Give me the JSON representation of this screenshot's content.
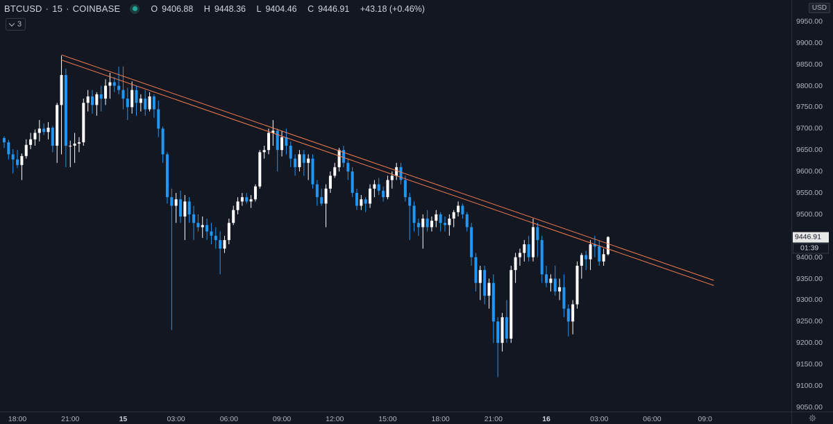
{
  "legend": {
    "symbol": "BTCUSD",
    "interval": "15",
    "exchange": "COINBASE",
    "separator": "·",
    "open_label": "O",
    "open": "9406.88",
    "high_label": "H",
    "high": "9448.36",
    "low_label": "L",
    "low": "9404.46",
    "close_label": "C",
    "close": "9446.91",
    "change": "+43.18 (+0.46%)",
    "status_icon": "market-open-dot-icon"
  },
  "indicators": {
    "count": "3",
    "icon": "chevron-down-icon"
  },
  "price_axis": {
    "currency": "USD",
    "current_price": "9446.91",
    "countdown": "01:39"
  },
  "settings_icon": "gear-icon",
  "colors": {
    "background": "#131722",
    "up": "#ffffff",
    "down": "#2196f3",
    "trendline": "#f57c4d",
    "axis_text": "#b2b5be"
  },
  "chart_data": {
    "type": "candlestick",
    "symbol": "BTCUSD",
    "interval_minutes": 15,
    "ylim": [
      9040,
      10000
    ],
    "y_ticks": [
      "9050.00",
      "9100.00",
      "9150.00",
      "9200.00",
      "9250.00",
      "9300.00",
      "9350.00",
      "9400.00",
      "9450.00",
      "9500.00",
      "9550.00",
      "9600.00",
      "9650.00",
      "9700.00",
      "9750.00",
      "9800.00",
      "9850.00",
      "9900.00",
      "9950.00"
    ],
    "x_ticks": [
      {
        "label": "18:00",
        "bar": 3,
        "bold": false
      },
      {
        "label": "21:00",
        "bar": 15,
        "bold": false
      },
      {
        "label": "15",
        "bar": 27,
        "bold": true
      },
      {
        "label": "03:00",
        "bar": 39,
        "bold": false
      },
      {
        "label": "06:00",
        "bar": 51,
        "bold": false
      },
      {
        "label": "09:00",
        "bar": 63,
        "bold": false
      },
      {
        "label": "12:00",
        "bar": 75,
        "bold": false
      },
      {
        "label": "15:00",
        "bar": 87,
        "bold": false
      },
      {
        "label": "18:00",
        "bar": 99,
        "bold": false
      },
      {
        "label": "21:00",
        "bar": 111,
        "bold": false
      },
      {
        "label": "16",
        "bar": 123,
        "bold": true
      },
      {
        "label": "03:00",
        "bar": 135,
        "bold": false
      },
      {
        "label": "06:00",
        "bar": 147,
        "bold": false
      },
      {
        "label": "09:0",
        "bar": 159,
        "bold": false
      }
    ],
    "trendlines": [
      {
        "name": "upper",
        "from": {
          "bar": 13,
          "price": 9872
        },
        "to": {
          "bar": 161,
          "price": 9346
        }
      },
      {
        "name": "lower",
        "from": {
          "bar": 13,
          "price": 9860
        },
        "to": {
          "bar": 161,
          "price": 9334
        }
      }
    ],
    "candles": [
      [
        9678,
        9682,
        9655,
        9668
      ],
      [
        9668,
        9674,
        9628,
        9640
      ],
      [
        9640,
        9652,
        9595,
        9628
      ],
      [
        9628,
        9650,
        9608,
        9615
      ],
      [
        9615,
        9642,
        9580,
        9636
      ],
      [
        9636,
        9675,
        9630,
        9662
      ],
      [
        9662,
        9690,
        9652,
        9675
      ],
      [
        9675,
        9698,
        9660,
        9690
      ],
      [
        9690,
        9720,
        9670,
        9700
      ],
      [
        9700,
        9712,
        9685,
        9692
      ],
      [
        9692,
        9715,
        9675,
        9702
      ],
      [
        9702,
        9706,
        9645,
        9660
      ],
      [
        9660,
        9760,
        9620,
        9755
      ],
      [
        9755,
        9870,
        9640,
        9825
      ],
      [
        9825,
        9840,
        9610,
        9660
      ],
      [
        9660,
        9672,
        9610,
        9660
      ],
      [
        9660,
        9690,
        9620,
        9665
      ],
      [
        9665,
        9680,
        9645,
        9668
      ],
      [
        9668,
        9770,
        9660,
        9760
      ],
      [
        9760,
        9790,
        9740,
        9775
      ],
      [
        9775,
        9790,
        9735,
        9755
      ],
      [
        9755,
        9785,
        9730,
        9780
      ],
      [
        9780,
        9800,
        9740,
        9770
      ],
      [
        9770,
        9815,
        9755,
        9800
      ],
      [
        9800,
        9830,
        9770,
        9808
      ],
      [
        9808,
        9820,
        9785,
        9800
      ],
      [
        9800,
        9845,
        9780,
        9790
      ],
      [
        9790,
        9845,
        9745,
        9770
      ],
      [
        9770,
        9795,
        9720,
        9750
      ],
      [
        9750,
        9810,
        9735,
        9790
      ],
      [
        9790,
        9800,
        9730,
        9760
      ],
      [
        9760,
        9780,
        9740,
        9770
      ],
      [
        9770,
        9790,
        9730,
        9745
      ],
      [
        9745,
        9785,
        9740,
        9775
      ],
      [
        9775,
        9780,
        9725,
        9745
      ],
      [
        9745,
        9765,
        9680,
        9700
      ],
      [
        9700,
        9705,
        9620,
        9640
      ],
      [
        9640,
        9645,
        9525,
        9540
      ],
      [
        9540,
        9560,
        9230,
        9520
      ],
      [
        9520,
        9550,
        9480,
        9535
      ],
      [
        9535,
        9555,
        9480,
        9495
      ],
      [
        9495,
        9545,
        9440,
        9530
      ],
      [
        9530,
        9540,
        9480,
        9500
      ],
      [
        9500,
        9520,
        9440,
        9480
      ],
      [
        9480,
        9500,
        9460,
        9470
      ],
      [
        9470,
        9495,
        9445,
        9475
      ],
      [
        9475,
        9490,
        9440,
        9460
      ],
      [
        9460,
        9480,
        9430,
        9450
      ],
      [
        9450,
        9470,
        9420,
        9440
      ],
      [
        9440,
        9460,
        9360,
        9420
      ],
      [
        9420,
        9450,
        9410,
        9440
      ],
      [
        9440,
        9490,
        9430,
        9480
      ],
      [
        9480,
        9520,
        9475,
        9510
      ],
      [
        9510,
        9540,
        9500,
        9530
      ],
      [
        9530,
        9550,
        9520,
        9540
      ],
      [
        9540,
        9550,
        9525,
        9530
      ],
      [
        9530,
        9545,
        9515,
        9535
      ],
      [
        9535,
        9570,
        9530,
        9565
      ],
      [
        9565,
        9650,
        9560,
        9645
      ],
      [
        9645,
        9660,
        9630,
        9650
      ],
      [
        9650,
        9700,
        9640,
        9690
      ],
      [
        9690,
        9720,
        9660,
        9695
      ],
      [
        9695,
        9700,
        9600,
        9650
      ],
      [
        9650,
        9695,
        9635,
        9680
      ],
      [
        9680,
        9700,
        9640,
        9660
      ],
      [
        9660,
        9670,
        9610,
        9630
      ],
      [
        9630,
        9640,
        9590,
        9610
      ],
      [
        9610,
        9650,
        9600,
        9640
      ],
      [
        9640,
        9650,
        9590,
        9620
      ],
      [
        9620,
        9640,
        9580,
        9630
      ],
      [
        9630,
        9640,
        9560,
        9570
      ],
      [
        9570,
        9580,
        9520,
        9540
      ],
      [
        9540,
        9560,
        9520,
        9525
      ],
      [
        9525,
        9570,
        9470,
        9560
      ],
      [
        9560,
        9600,
        9550,
        9590
      ],
      [
        9590,
        9620,
        9585,
        9610
      ],
      [
        9610,
        9655,
        9600,
        9650
      ],
      [
        9650,
        9660,
        9610,
        9620
      ],
      [
        9620,
        9630,
        9580,
        9600
      ],
      [
        9600,
        9610,
        9540,
        9550
      ],
      [
        9550,
        9560,
        9510,
        9520
      ],
      [
        9520,
        9545,
        9510,
        9535
      ],
      [
        9535,
        9540,
        9505,
        9525
      ],
      [
        9525,
        9570,
        9515,
        9560
      ],
      [
        9560,
        9580,
        9540,
        9570
      ],
      [
        9570,
        9585,
        9545,
        9555
      ],
      [
        9555,
        9565,
        9530,
        9540
      ],
      [
        9540,
        9590,
        9535,
        9580
      ],
      [
        9580,
        9600,
        9560,
        9590
      ],
      [
        9590,
        9620,
        9580,
        9610
      ],
      [
        9610,
        9620,
        9570,
        9580
      ],
      [
        9580,
        9590,
        9530,
        9540
      ],
      [
        9540,
        9550,
        9440,
        9520
      ],
      [
        9520,
        9530,
        9460,
        9480
      ],
      [
        9480,
        9490,
        9450,
        9470
      ],
      [
        9470,
        9500,
        9420,
        9490
      ],
      [
        9490,
        9510,
        9460,
        9470
      ],
      [
        9470,
        9495,
        9460,
        9485
      ],
      [
        9485,
        9510,
        9470,
        9500
      ],
      [
        9500,
        9505,
        9460,
        9480
      ],
      [
        9480,
        9495,
        9460,
        9475
      ],
      [
        9475,
        9500,
        9450,
        9490
      ],
      [
        9490,
        9510,
        9470,
        9505
      ],
      [
        9505,
        9530,
        9495,
        9520
      ],
      [
        9520,
        9525,
        9490,
        9500
      ],
      [
        9500,
        9505,
        9460,
        9470
      ],
      [
        9470,
        9480,
        9380,
        9400
      ],
      [
        9400,
        9410,
        9320,
        9340
      ],
      [
        9340,
        9380,
        9300,
        9370
      ],
      [
        9370,
        9380,
        9290,
        9310
      ],
      [
        9310,
        9350,
        9280,
        9340
      ],
      [
        9340,
        9360,
        9200,
        9250
      ],
      [
        9250,
        9260,
        9120,
        9200
      ],
      [
        9200,
        9270,
        9180,
        9260
      ],
      [
        9260,
        9300,
        9200,
        9210
      ],
      [
        9210,
        9380,
        9200,
        9370
      ],
      [
        9370,
        9410,
        9340,
        9400
      ],
      [
        9400,
        9420,
        9380,
        9410
      ],
      [
        9410,
        9440,
        9390,
        9430
      ],
      [
        9430,
        9450,
        9390,
        9400
      ],
      [
        9400,
        9490,
        9390,
        9470
      ],
      [
        9470,
        9480,
        9400,
        9440
      ],
      [
        9440,
        9450,
        9340,
        9360
      ],
      [
        9360,
        9380,
        9330,
        9340
      ],
      [
        9340,
        9360,
        9320,
        9350
      ],
      [
        9350,
        9380,
        9310,
        9320
      ],
      [
        9320,
        9350,
        9300,
        9330
      ],
      [
        9330,
        9360,
        9260,
        9280
      ],
      [
        9280,
        9290,
        9215,
        9250
      ],
      [
        9250,
        9300,
        9220,
        9290
      ],
      [
        9290,
        9390,
        9280,
        9380
      ],
      [
        9380,
        9410,
        9350,
        9405
      ],
      [
        9405,
        9415,
        9370,
        9395
      ],
      [
        9395,
        9440,
        9370,
        9430
      ],
      [
        9430,
        9450,
        9400,
        9425
      ],
      [
        9425,
        9440,
        9380,
        9390
      ],
      [
        9390,
        9420,
        9380,
        9407
      ],
      [
        9407,
        9449,
        9404,
        9447
      ]
    ]
  }
}
